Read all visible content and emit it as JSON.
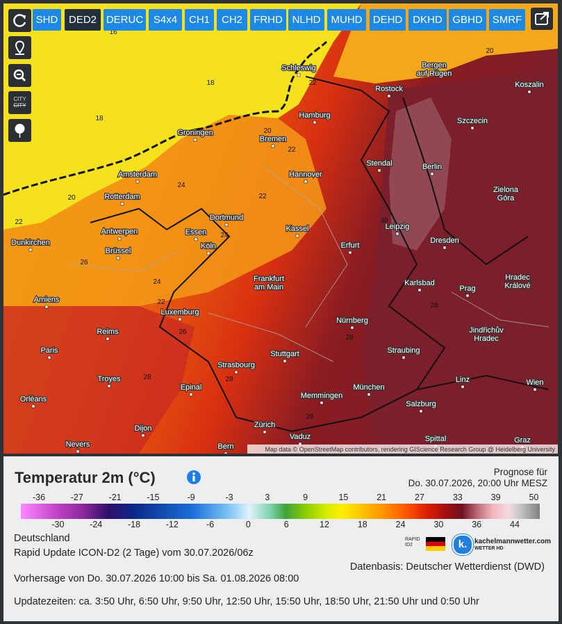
{
  "toolbar": {
    "buttons": [
      {
        "label": "SHD"
      },
      {
        "label": "DED2",
        "active": true
      },
      {
        "label": "DERUC"
      },
      {
        "label": "S4x4"
      },
      {
        "label": "CH1"
      },
      {
        "label": "CH2"
      },
      {
        "label": "FRHD"
      },
      {
        "label": "NLHD"
      },
      {
        "label": "MUHD"
      },
      {
        "label": "DEHD"
      },
      {
        "label": "DKHD"
      },
      {
        "label": "GBHD"
      },
      {
        "label": "SMRF"
      }
    ]
  },
  "side_buttons": {
    "city_toggle": [
      "CITY",
      "CITY"
    ]
  },
  "map": {
    "cities": [
      [
        "Schleswig"
      ],
      [
        "Bergen",
        "auf Rügen"
      ],
      [
        "Rostock"
      ],
      [
        "Koszalin"
      ],
      [
        "Hamburg"
      ],
      [
        "Szczecin"
      ],
      [
        "Groningen"
      ],
      [
        "Bremen"
      ],
      [
        "Stendal"
      ],
      [
        "Berlin"
      ],
      [
        "Amsterdam"
      ],
      [
        "Hannover"
      ],
      [
        "Zielona",
        "Góra"
      ],
      [
        "Rotterdam"
      ],
      [
        "Dortmund"
      ],
      [
        "Leipzig"
      ],
      [
        "Kassel"
      ],
      [
        "Antwerpen"
      ],
      [
        "Essen"
      ],
      [
        "Dunkirchen"
      ],
      [
        "Dresden"
      ],
      [
        "Köln"
      ],
      [
        "Erfurt"
      ],
      [
        "Brüssel"
      ],
      [
        "Frankfurt",
        "am Main"
      ],
      [
        "Hradec",
        "Králové"
      ],
      [
        "Karlsbad"
      ],
      [
        "Prag"
      ],
      [
        "Amiens"
      ],
      [
        "Luxemburg"
      ],
      [
        "Nürnberg"
      ],
      [
        "Jindřichův",
        "Hradec"
      ],
      [
        "Reims"
      ],
      [
        "Paris"
      ],
      [
        "Stuttgart"
      ],
      [
        "Straubing"
      ],
      [
        "Strasbourg"
      ],
      [
        "Troyes"
      ],
      [
        "München"
      ],
      [
        "Linz"
      ],
      [
        "Wien"
      ],
      [
        "Epinal"
      ],
      [
        "Memmingen"
      ],
      [
        "Orléans"
      ],
      [
        "Salzburg"
      ],
      [
        "Zürich"
      ],
      [
        "Dijon"
      ],
      [
        "Vaduz"
      ],
      [
        "Spittal"
      ],
      [
        "Nevers"
      ],
      [
        "Bern"
      ],
      [
        "Graz"
      ]
    ],
    "temperatures": [
      16,
      18,
      18,
      20,
      22,
      20,
      22,
      24,
      22,
      24,
      26,
      24,
      22,
      26,
      28,
      28,
      28,
      26,
      30,
      28,
      20,
      22
    ],
    "attribution": "Map data © OpenStreetMap contributors, rendering GIScience Research Group @ Heidelberg University"
  },
  "panel": {
    "title": "Temperatur 2m (°C)",
    "forecast_for_label": "Prognose für",
    "forecast_for": "Do. 30.07.2026, 20:00 Uhr MESZ",
    "region": "Deutschland",
    "model": "Rapid Update ICON-D2 (2 Tage) vom 30.07.2026/06z",
    "source": "Datenbasis: Deutscher Wetterdienst (DWD)",
    "period": "Vorhersage von Do. 30.07.2026 10:00 bis Sa. 01.08.2026 08:00",
    "updates": "Updatezeiten: ca. 3:50 Uhr, 6:50 Uhr, 9:50 Uhr, 12:50 Uhr, 15:50 Uhr, 18:50 Uhr, 21:50 Uhr und 0:50 Uhr"
  },
  "colorbar": {
    "labels_top": [
      -36,
      -27,
      -21,
      -15,
      -9,
      -3,
      3,
      9,
      15,
      21,
      27,
      33,
      39,
      50
    ],
    "labels_bottom": [
      -30,
      -24,
      -18,
      -12,
      -6,
      0,
      6,
      12,
      18,
      24,
      30,
      36,
      44
    ]
  },
  "logos": {
    "rapid": "RAPID",
    "id2": "ID2",
    "brand_mark": "k.",
    "brand": "kachelmannwetter.com",
    "brand_sub": "WETTER HD"
  }
}
